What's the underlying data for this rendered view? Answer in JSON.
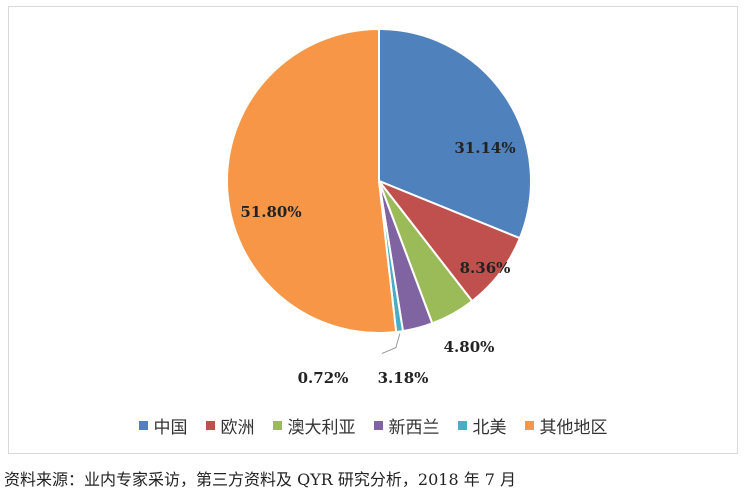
{
  "chart_data": {
    "type": "pie",
    "categories": [
      "中国",
      "欧洲",
      "澳大利亚",
      "新西兰",
      "北美",
      "其他地区"
    ],
    "values": [
      31.14,
      8.36,
      4.8,
      3.18,
      0.72,
      51.8
    ],
    "labels": [
      "31.14%",
      "8.36%",
      "4.80%",
      "3.18%",
      "0.72%",
      "51.80%"
    ],
    "colors": [
      "#4f81bd",
      "#c0504d",
      "#9bbb59",
      "#8064a2",
      "#4bacc6",
      "#f79646"
    ],
    "legend_position": "bottom"
  },
  "source_note": "资料来源：业内专家采访，第三方资料及 QYR 研究分析，2018 年 7 月"
}
